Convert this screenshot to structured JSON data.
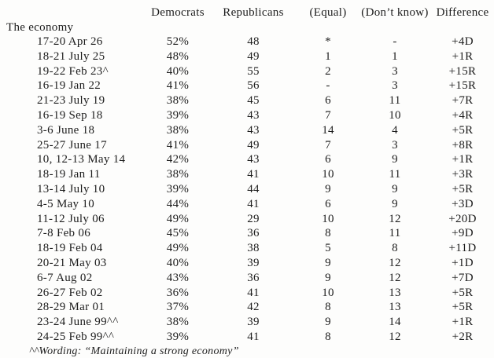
{
  "page": {
    "colors": {
      "background": "#fdfdfc",
      "text": "#1d1d1d"
    }
  },
  "table": {
    "section_label": "The economy",
    "columns": {
      "dem": "Democrats",
      "rep": "Republicans",
      "equal": "(Equal)",
      "dont_know": "(Don’t know)",
      "diff": "Difference"
    },
    "rows": [
      {
        "date": "17-20 Apr 26",
        "dem": "52%",
        "rep": "48",
        "equal": "*",
        "dont_know": "-",
        "diff": "+4D"
      },
      {
        "date": "18-21 July 25",
        "dem": "48%",
        "rep": "49",
        "equal": "1",
        "dont_know": "1",
        "diff": "+1R"
      },
      {
        "date": "19-22 Feb 23^",
        "dem": "40%",
        "rep": "55",
        "equal": "2",
        "dont_know": "3",
        "diff": "+15R"
      },
      {
        "date": "16-19 Jan 22",
        "dem": "41%",
        "rep": "56",
        "equal": "-",
        "dont_know": "3",
        "diff": "+15R"
      },
      {
        "date": "21-23 July 19",
        "dem": "38%",
        "rep": "45",
        "equal": "6",
        "dont_know": "11",
        "diff": "+7R"
      },
      {
        "date": "16-19 Sep 18",
        "dem": "39%",
        "rep": "43",
        "equal": "7",
        "dont_know": "10",
        "diff": "+4R"
      },
      {
        "date": "3-6 June 18",
        "dem": "38%",
        "rep": "43",
        "equal": "14",
        "dont_know": "4",
        "diff": "+5R"
      },
      {
        "date": "25-27 June 17",
        "dem": "41%",
        "rep": "49",
        "equal": "7",
        "dont_know": "3",
        "diff": "+8R"
      },
      {
        "date": "10, 12-13 May 14",
        "dem": "42%",
        "rep": "43",
        "equal": "6",
        "dont_know": "9",
        "diff": "+1R"
      },
      {
        "date": "18-19 Jan 11",
        "dem": "38%",
        "rep": "41",
        "equal": "10",
        "dont_know": "11",
        "diff": "+3R"
      },
      {
        "date": "13-14 July 10",
        "dem": "39%",
        "rep": "44",
        "equal": "9",
        "dont_know": "9",
        "diff": "+5R"
      },
      {
        "date": "4-5 May 10",
        "dem": "44%",
        "rep": "41",
        "equal": "6",
        "dont_know": "9",
        "diff": "+3D"
      },
      {
        "date": "11-12 July 06",
        "dem": "49%",
        "rep": "29",
        "equal": "10",
        "dont_know": "12",
        "diff": "+20D"
      },
      {
        "date": "7-8 Feb 06",
        "dem": "45%",
        "rep": "36",
        "equal": "8",
        "dont_know": "11",
        "diff": "+9D"
      },
      {
        "date": "18-19 Feb 04",
        "dem": "49%",
        "rep": "38",
        "equal": "5",
        "dont_know": "8",
        "diff": "+11D"
      },
      {
        "date": "20-21 May 03",
        "dem": "40%",
        "rep": "39",
        "equal": "9",
        "dont_know": "12",
        "diff": "+1D"
      },
      {
        "date": "6-7 Aug 02",
        "dem": "43%",
        "rep": "36",
        "equal": "9",
        "dont_know": "12",
        "diff": "+7D"
      },
      {
        "date": "26-27 Feb 02",
        "dem": "36%",
        "rep": "41",
        "equal": "10",
        "dont_know": "13",
        "diff": "+5R"
      },
      {
        "date": "28-29 Mar 01",
        "dem": "37%",
        "rep": "42",
        "equal": "8",
        "dont_know": "13",
        "diff": "+5R"
      },
      {
        "date": "23-24 June 99^^",
        "dem": "38%",
        "rep": "39",
        "equal": "9",
        "dont_know": "14",
        "diff": "+1R"
      },
      {
        "date": "24-25 Feb 99^^",
        "dem": "39%",
        "rep": "41",
        "equal": "8",
        "dont_know": "12",
        "diff": "+2R"
      }
    ],
    "footnote": "^^Wording: “Maintaining a strong economy”"
  }
}
